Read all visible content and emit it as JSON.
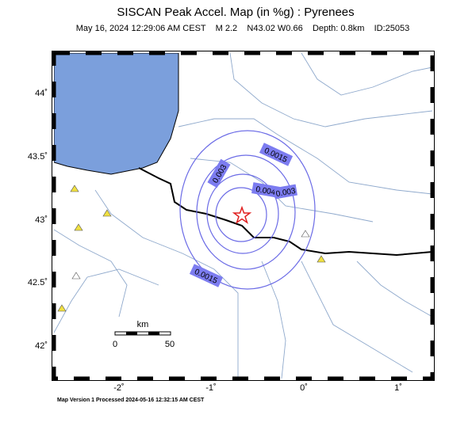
{
  "map": {
    "title": "SISCAN Peak Accel. Map (in %g) : Pyrenees",
    "subtitle": "May 16, 2024 12:29:06 AM CEST    M 2.2    N43.02 W0.66    Depth: 0.8km    ID:25053",
    "lat_labels": [
      "44˚",
      "43.5˚",
      "43˚",
      "42.5˚",
      "42˚"
    ],
    "lon_labels": [
      "-2˚",
      "-1˚",
      "0˚",
      "1˚"
    ],
    "contour_labels": [
      "0.0015",
      "0.003",
      "0.004",
      "0.003",
      "0.0015"
    ],
    "scale": {
      "unit": "km",
      "start": "0",
      "end": "50"
    },
    "footer": "Map Version 1 Processed 2024-05-16 12:32:15 AM CEST"
  }
}
